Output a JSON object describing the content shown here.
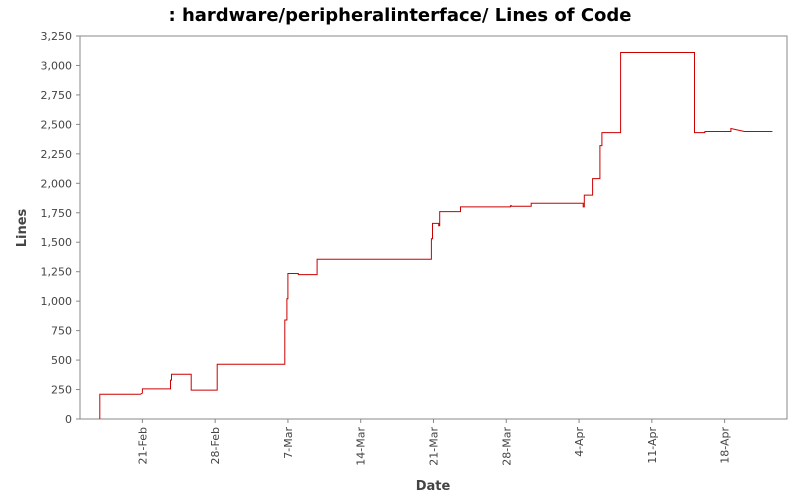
{
  "chart_data": {
    "type": "line",
    "title": ": hardware/peripheralinterface/ Lines of Code",
    "xlabel": "Date",
    "ylabel": "Lines",
    "ylim": [
      0,
      3250
    ],
    "y_ticks": [
      {
        "value": 0,
        "label": "0"
      },
      {
        "value": 250,
        "label": "250"
      },
      {
        "value": 500,
        "label": "500"
      },
      {
        "value": 750,
        "label": "750"
      },
      {
        "value": 1000,
        "label": "1,000"
      },
      {
        "value": 1250,
        "label": "1,250"
      },
      {
        "value": 1500,
        "label": "1,500"
      },
      {
        "value": 1750,
        "label": "1,750"
      },
      {
        "value": 2000,
        "label": "2,000"
      },
      {
        "value": 2250,
        "label": "2,250"
      },
      {
        "value": 2500,
        "label": "2,500"
      },
      {
        "value": 2750,
        "label": "2,750"
      },
      {
        "value": 3000,
        "label": "3,000"
      },
      {
        "value": 3250,
        "label": "3,250"
      }
    ],
    "x_ticks": [
      {
        "value": "Feb 21",
        "label": "21-Feb"
      },
      {
        "value": "Feb 28",
        "label": "28-Feb"
      },
      {
        "value": "Mar 7",
        "label": "7-Mar"
      },
      {
        "value": "Mar 14",
        "label": "14-Mar"
      },
      {
        "value": "Mar 21",
        "label": "21-Mar"
      },
      {
        "value": "Mar 28",
        "label": "28-Mar"
      },
      {
        "value": "Apr 4",
        "label": "4-Apr"
      },
      {
        "value": "Apr 11",
        "label": "11-Apr"
      },
      {
        "value": "Apr 18",
        "label": "18-Apr"
      }
    ],
    "xlim": [
      "Feb 15",
      "Apr 24"
    ],
    "grid": false,
    "legend": "none",
    "line_color": "#cc0000",
    "series": [
      {
        "step": true,
        "x": [
          "Feb 16.9",
          "Feb 16.9",
          "Feb 20.8",
          "Feb 21.0",
          "Feb 21.0",
          "Feb 23.7",
          "Feb 23.7",
          "Feb 23.8",
          "Feb 23.8",
          "Feb 25.7",
          "Feb 25.7",
          "Feb 28.2",
          "Feb 28.2",
          "Mar 6.7",
          "Mar 6.7",
          "Mar 6.9",
          "Mar 6.9",
          "Mar 7.0",
          "Mar 7.0",
          "Mar 8.0",
          "Mar 8.0",
          "Mar 9.8",
          "Mar 9.8",
          "Mar 20.8",
          "Mar 20.8",
          "Mar 20.9",
          "Mar 20.9",
          "Mar 21.5",
          "Mar 21.5",
          "Mar 21.6",
          "Mar 21.6",
          "Mar 23.6",
          "Mar 23.6",
          "Mar 28.4",
          "Mar 28.4",
          "Mar 28.5",
          "Mar 28.5",
          "Mar 30.4",
          "Mar 30.4",
          "Apr 4.4",
          "Apr 4.4",
          "Apr 4.5",
          "Apr 4.5",
          "Apr 5.3",
          "Apr 5.3",
          "Apr 6.0",
          "Apr 6.0",
          "Apr 6.2",
          "Apr 6.2",
          "Apr 8.0",
          "Apr 8.0",
          "Apr 15.1",
          "Apr 15.1",
          "Apr 16.1",
          "Apr 16.1",
          "Apr 18.6",
          "Apr 18.6",
          "Apr 19.9",
          "Apr 19.9",
          "Apr 22.6"
        ],
        "y": [
          0,
          210,
          210,
          220,
          255,
          255,
          330,
          330,
          380,
          380,
          245,
          245,
          465,
          465,
          840,
          840,
          1020,
          1020,
          1235,
          1235,
          1225,
          1225,
          1355,
          1355,
          1530,
          1530,
          1660,
          1660,
          1640,
          1640,
          1760,
          1760,
          1800,
          1800,
          1810,
          1810,
          1805,
          1805,
          1830,
          1830,
          1800,
          1800,
          1900,
          1900,
          2040,
          2040,
          2320,
          2320,
          2430,
          2430,
          3110,
          3110,
          2430,
          2430,
          2440,
          2440,
          2465,
          2440,
          2440,
          2440
        ]
      }
    ]
  }
}
